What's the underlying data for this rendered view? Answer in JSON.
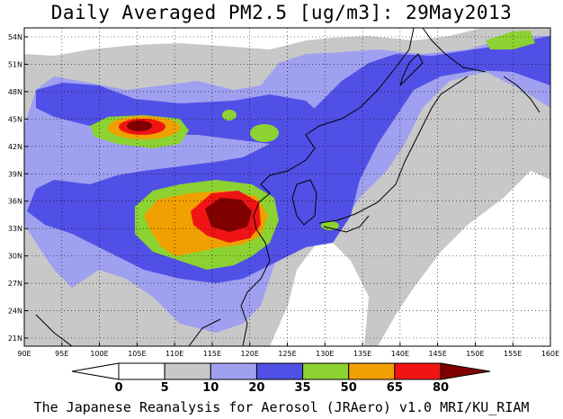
{
  "title": "Daily Averaged PM2.5 [ug/m3]: 29May2013",
  "credit": "The Japanese Reanalysis for Aerosol (JRAero) v1.0 MRI/KU_RIAM",
  "lat_labels": [
    "54N",
    "51N",
    "48N",
    "45N",
    "42N",
    "39N",
    "36N",
    "33N",
    "30N",
    "27N",
    "24N",
    "21N"
  ],
  "lon_labels": [
    "90E",
    "95E",
    "100E",
    "105E",
    "110E",
    "115E",
    "120E",
    "125E",
    "130E",
    "135E",
    "140E",
    "145E",
    "150E",
    "155E",
    "160E"
  ],
  "colorbar": {
    "ticks": [
      "0",
      "5",
      "10",
      "20",
      "35",
      "50",
      "65",
      "80"
    ],
    "colors": [
      "#ffffff",
      "#c8c8c8",
      "#a0a0f0",
      "#5050e6",
      "#8cd232",
      "#f0a000",
      "#f01414",
      "#800000"
    ]
  },
  "colors": {
    "white": "#ffffff",
    "gray": "#c8c8c8",
    "light_blue": "#a0a0f0",
    "blue": "#5050e6",
    "green": "#8cd232",
    "orange": "#f0a000",
    "red": "#f01414",
    "dark_red": "#800000"
  }
}
